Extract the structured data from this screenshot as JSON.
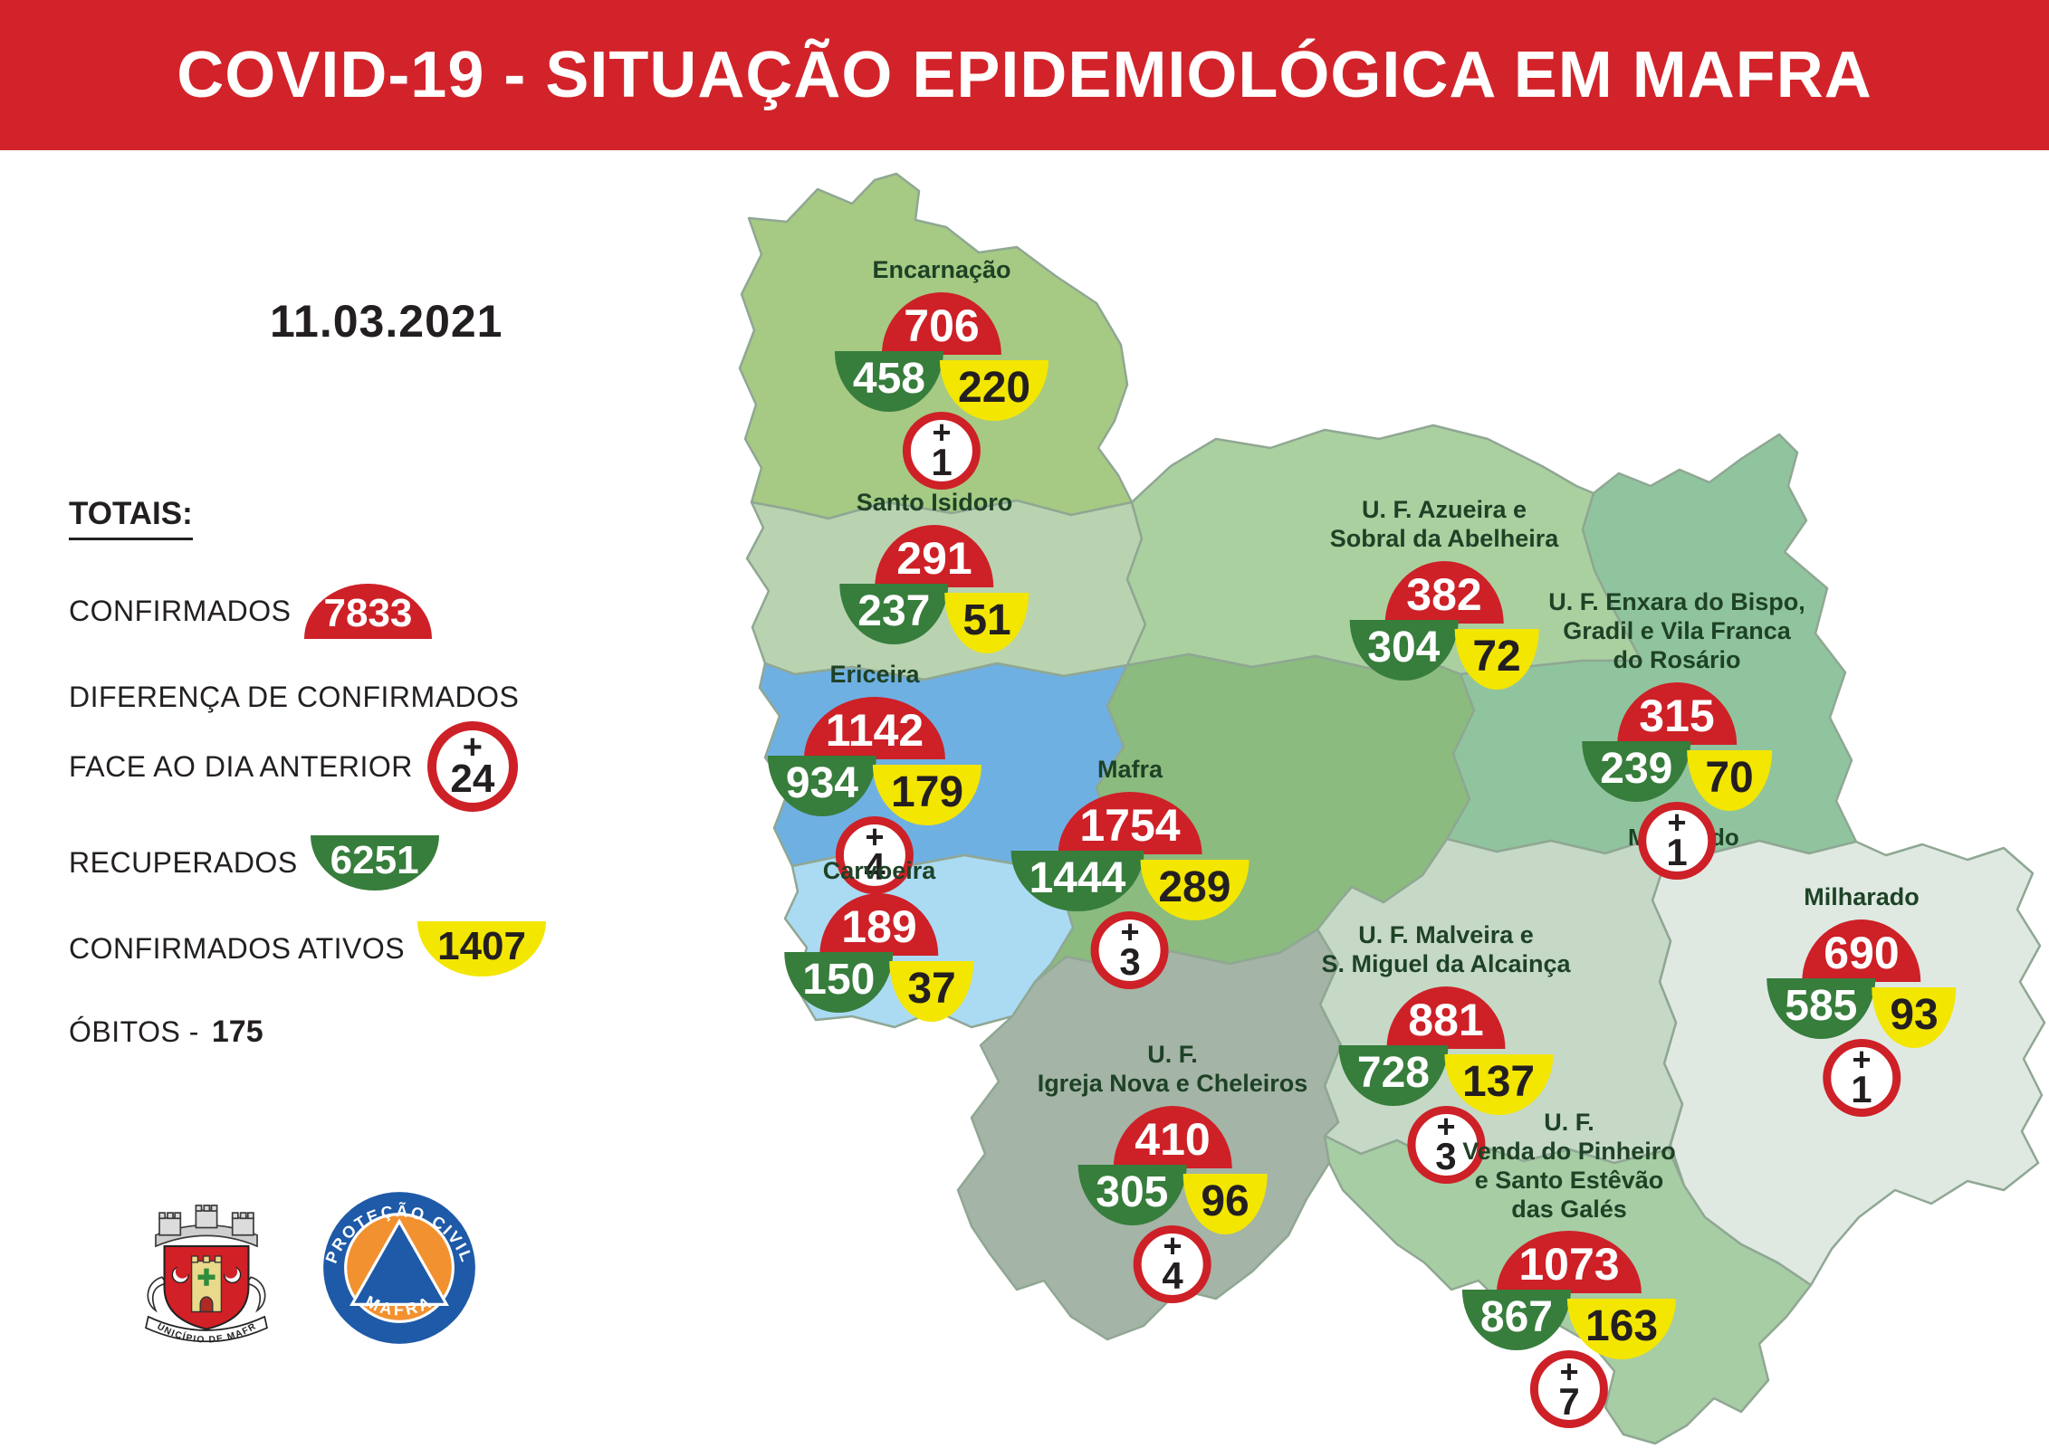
{
  "plus_sign": "+",
  "colors": {
    "header_red": "#d2232a",
    "confirmed_red": "#ce2027",
    "recovered_green": "#377d3c",
    "active_yellow": "#f3e600",
    "region_label_green": "#1e4226",
    "map_border": "#8fa793"
  },
  "header": {
    "title": "COVID-19 - SITUAÇÃO EPIDEMIOLÓGICA EM MAFRA"
  },
  "date": "11.03.2021",
  "totals": {
    "heading": "TOTAIS:",
    "confirmed_label": "CONFIRMADOS",
    "confirmed_value": "7833",
    "diff_label_line1": "DIFERENÇA DE CONFIRMADOS",
    "diff_label_line2": "FACE AO DIA ANTERIOR",
    "diff_plus_sign": "+",
    "diff_value": "24",
    "recovered_label": "RECUPERADOS",
    "recovered_value": "6251",
    "active_label": "CONFIRMADOS ATIVOS",
    "active_value": "1407",
    "deaths_label": "ÓBITOS -",
    "deaths_value": "175"
  },
  "map_labels": {
    "milharado_border": "Milharado"
  },
  "regions": [
    {
      "id": "encarnacao",
      "name_lines": [
        "Encarnação"
      ],
      "confirmed": "706",
      "recovered": "458",
      "active": "220",
      "delta": "1",
      "fill": "#a6ca83"
    },
    {
      "id": "santo-isidoro",
      "name_lines": [
        "Santo Isidoro"
      ],
      "confirmed": "291",
      "recovered": "237",
      "active": "51",
      "delta": null,
      "fill": "#b9d3b1"
    },
    {
      "id": "azueira",
      "name_lines": [
        "U. F. Azueira e",
        "Sobral da Abelheira"
      ],
      "confirmed": "382",
      "recovered": "304",
      "active": "72",
      "delta": null,
      "fill": "#abd0a0"
    },
    {
      "id": "enxara",
      "name_lines": [
        "U. F. Enxara do Bispo,",
        "Gradil e Vila Franca",
        "do Rosário"
      ],
      "confirmed": "315",
      "recovered": "239",
      "active": "70",
      "delta": "1",
      "fill": "#90c49e"
    },
    {
      "id": "ericeira",
      "name_lines": [
        "Ericeira"
      ],
      "confirmed": "1142",
      "recovered": "934",
      "active": "179",
      "delta": "4",
      "fill": "#6fb0e3"
    },
    {
      "id": "mafra",
      "name_lines": [
        "Mafra"
      ],
      "confirmed": "1754",
      "recovered": "1444",
      "active": "289",
      "delta": "3",
      "fill": "#8bbb7e"
    },
    {
      "id": "carvoeira",
      "name_lines": [
        "Carvoeira"
      ],
      "confirmed": "189",
      "recovered": "150",
      "active": "37",
      "delta": null,
      "fill": "#abdaf3"
    },
    {
      "id": "milharado",
      "name_lines": [
        "Milharado"
      ],
      "confirmed": "690",
      "recovered": "585",
      "active": "93",
      "delta": "1",
      "fill": "#dfe9e2"
    },
    {
      "id": "malveira",
      "name_lines": [
        "U. F. Malveira e",
        "S. Miguel da Alcainça"
      ],
      "confirmed": "881",
      "recovered": "728",
      "active": "137",
      "delta": "3",
      "fill": "#c5d9c6"
    },
    {
      "id": "igreja-nova",
      "name_lines": [
        "U. F.",
        "Igreja Nova e Cheleiros"
      ],
      "confirmed": "410",
      "recovered": "305",
      "active": "96",
      "delta": "4",
      "fill": "#a4b4a7"
    },
    {
      "id": "venda",
      "name_lines": [
        "U. F.",
        "Venda do Pinheiro",
        "e Santo Estêvão",
        "das Galés"
      ],
      "confirmed": "1073",
      "recovered": "867",
      "active": "163",
      "delta": "7",
      "fill": "#a7cda4"
    }
  ],
  "logos": {
    "municipality_banner": "MUNICÍPIO DE MAFRA",
    "civil_protection_arc_top": "PROTEÇÃO CIVIL",
    "civil_protection_arc_bottom": "MAFRA"
  }
}
